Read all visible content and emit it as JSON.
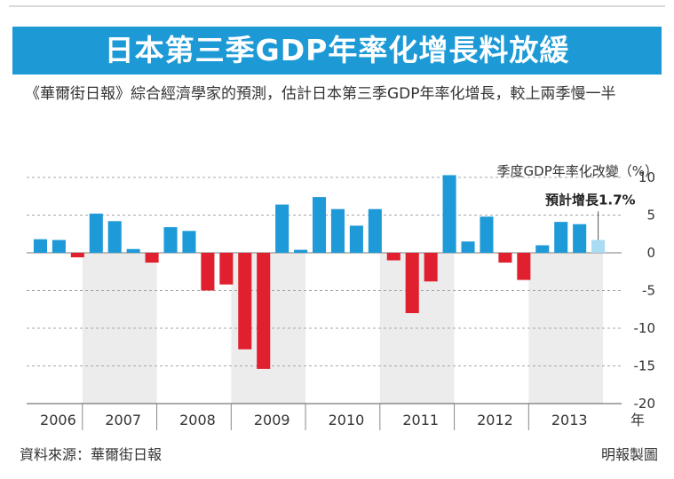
{
  "header": {
    "title": "日本第三季GDP年率化增長料放緩",
    "subtitle": "《華爾街日報》綜合經濟學家的預測，估計日本第三季GDP年率化增長，較上兩季慢一半",
    "unit": "季度GDP年率化改變（%）"
  },
  "footer": {
    "source": "資料來源：華爾街日報",
    "credit": "明報製圖"
  },
  "chart_data": {
    "type": "bar",
    "ylim": [
      -20,
      10
    ],
    "yticks": [
      10,
      5,
      0,
      -5,
      -10,
      -15,
      -20
    ],
    "ytick_labels": [
      "10",
      "5",
      "0",
      "-5",
      "-10",
      "-15",
      "-20"
    ],
    "years": [
      "2006",
      "2007",
      "2008",
      "2009",
      "2010",
      "2011",
      "2012",
      "2013"
    ],
    "year_suffix": "年",
    "quarters_per_year": 4,
    "values": [
      1.8,
      1.7,
      -0.6,
      5.2,
      4.2,
      0.5,
      -1.3,
      3.4,
      2.9,
      -5.0,
      -4.2,
      -12.8,
      -15.4,
      6.4,
      0.4,
      7.4,
      5.8,
      3.6,
      5.8,
      -1.0,
      -8.0,
      -3.8,
      10.3,
      1.5,
      4.8,
      -1.3,
      -3.6,
      1.0,
      4.1,
      3.8,
      1.7
    ],
    "forecast_index": 30,
    "annotation": "預計增長1.7%",
    "shaded_years": [
      "2007",
      "2009",
      "2011",
      "2013"
    ],
    "colors": {
      "positive": "#1e9ad8",
      "negative": "#e0202e",
      "forecast": "#a9dcf3",
      "shade": "#ececec",
      "grid": "#a7a7a7",
      "title_bg": "#1d9ad6"
    }
  }
}
